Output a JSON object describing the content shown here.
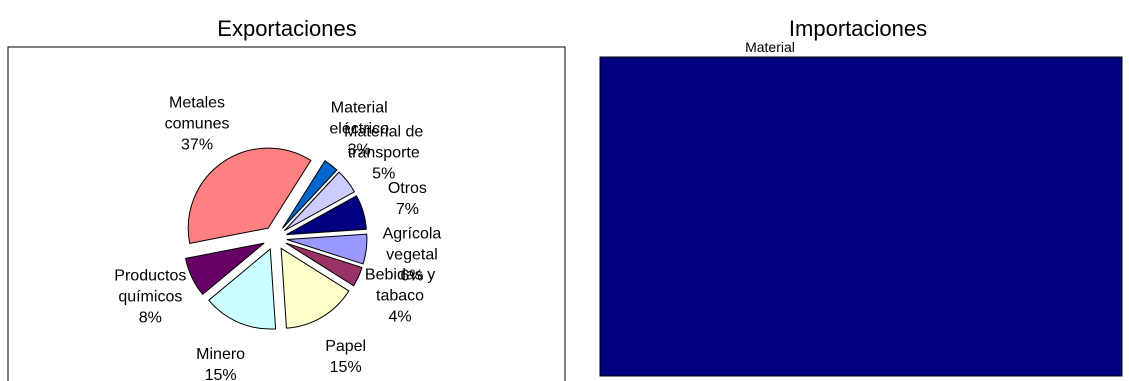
{
  "chart_data": [
    {
      "type": "pie",
      "title": "Exportaciones",
      "categories": [
        "Metales comunes",
        "Material eléctrico",
        "Material de transporte",
        "Otros",
        "Agrícola vegetal",
        "Bebidas y tabaco",
        "Papel",
        "Minero",
        "Productos químicos"
      ],
      "values": [
        37,
        3,
        5,
        7,
        6,
        4,
        15,
        15,
        8
      ],
      "value_labels": [
        "37%",
        "3%",
        "5%",
        "7%",
        "6%",
        "4%",
        "15%",
        "15%",
        "8%"
      ],
      "colors": [
        "#ff8080",
        "#0066cc",
        "#ccccff",
        "#000080",
        "#9999ff",
        "#993366",
        "#ffffcc",
        "#ccffff",
        "#660066"
      ],
      "exploded": true
    },
    {
      "type": "pie",
      "title": "Importaciones",
      "annotations": [
        "Material"
      ],
      "plot_background": "#000080"
    }
  ]
}
